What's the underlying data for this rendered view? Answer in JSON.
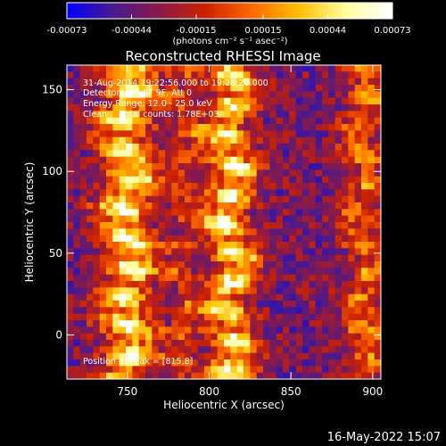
{
  "chart_data": {
    "type": "heatmap",
    "title": "Reconstructed RHESSI Image",
    "xlabel": "Heliocentric X (arcsec)",
    "ylabel": "Heliocentric Y (arcsec)",
    "xlim": [
      713,
      905
    ],
    "ylim": [
      -27,
      165
    ],
    "x_ticks": [
      750,
      800,
      850,
      900
    ],
    "y_ticks": [
      0,
      50,
      100,
      150
    ],
    "colorbar": {
      "range": [
        -0.00073,
        0.00073
      ],
      "tick_values": [
        -0.00073,
        -0.00044,
        -0.00015,
        0.00015,
        0.00044,
        0.00073
      ],
      "tick_labels": [
        "-0.00073",
        "-0.00044",
        "-0.00015",
        "0.00015",
        "0.00044",
        "0.00073"
      ],
      "unit_label": "(photons cm⁻² s⁻¹ asec⁻²)",
      "colormap": [
        "#0000ff",
        "#4a1a8c",
        "#8a1a4a",
        "#cc2200",
        "#ff6a00",
        "#ffc000",
        "#ffffa0",
        "#ffffff"
      ]
    },
    "ridges": [
      {
        "x": 750,
        "amplitude": 1.0,
        "width": 16
      },
      {
        "x": 813,
        "amplitude": 0.95,
        "width": 14
      },
      {
        "x": 785,
        "amplitude": 0.35,
        "width": 10
      },
      {
        "x": 895,
        "amplitude": 0.55,
        "width": 12
      }
    ],
    "annotations": [
      "31-Aug-2014 19:22:56.000 to 19:28:20.000",
      "Detectors: 3F 6F 9F, Att 0",
      "Energy Range: 12.0 - 25.0 keV",
      "Clean     Total counts: 1.78E+03"
    ],
    "peak_label": "Position of Peak = [815,8]",
    "peak_position": [
      815,
      8
    ]
  },
  "footer": {
    "timestamp": "16-May-2022 15:07"
  }
}
